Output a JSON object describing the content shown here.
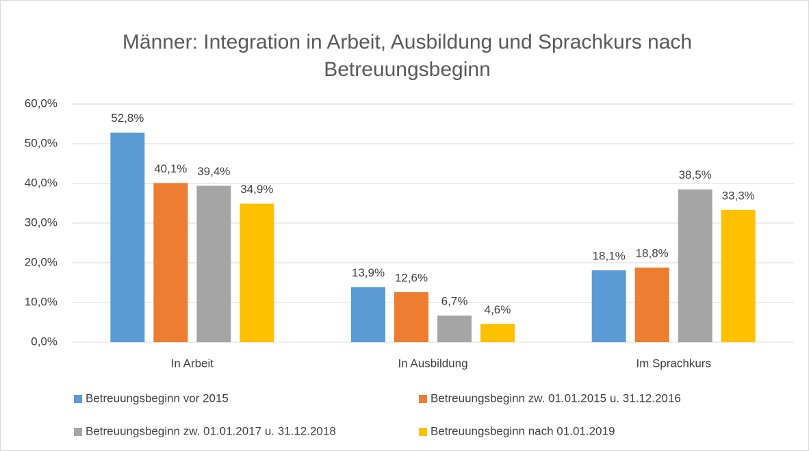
{
  "chart_data": {
    "type": "bar",
    "title": "Männer: Integration in Arbeit, Ausbildung und Sprachkurs nach Betreuungsbeginn",
    "categories": [
      "In Arbeit",
      "In Ausbildung",
      "Im Sprachkurs"
    ],
    "series": [
      {
        "name": "Betreuungsbeginn vor 2015",
        "color": "#5b9bd5",
        "values": [
          52.8,
          13.9,
          18.1
        ],
        "value_labels": [
          "52,8%",
          "13,9%",
          "18,1%"
        ]
      },
      {
        "name": "Betreuungsbeginn zw. 01.01.2015 u. 31.12.2016",
        "color": "#ed7d31",
        "values": [
          40.1,
          12.6,
          18.8
        ],
        "value_labels": [
          "40,1%",
          "12,6%",
          "18,8%"
        ]
      },
      {
        "name": "Betreuungsbeginn zw. 01.01.2017 u. 31.12.2018",
        "color": "#a5a5a5",
        "values": [
          39.4,
          6.7,
          38.5
        ],
        "value_labels": [
          "39,4%",
          "6,7%",
          "38,5%"
        ]
      },
      {
        "name": "Betreuungsbeginn nach 01.01.2019",
        "color": "#ffc000",
        "values": [
          34.9,
          4.6,
          33.3
        ],
        "value_labels": [
          "34,9%",
          "4,6%",
          "33,3%"
        ]
      }
    ],
    "ylim": [
      0,
      60
    ],
    "yticks": [
      {
        "value": 0,
        "label": "0,0%"
      },
      {
        "value": 10,
        "label": "10,0%"
      },
      {
        "value": 20,
        "label": "20,0%"
      },
      {
        "value": 30,
        "label": "30,0%"
      },
      {
        "value": 40,
        "label": "40,0%"
      },
      {
        "value": 50,
        "label": "50,0%"
      },
      {
        "value": 60,
        "label": "60,0%"
      }
    ],
    "grid": true,
    "legend": "bottom"
  }
}
